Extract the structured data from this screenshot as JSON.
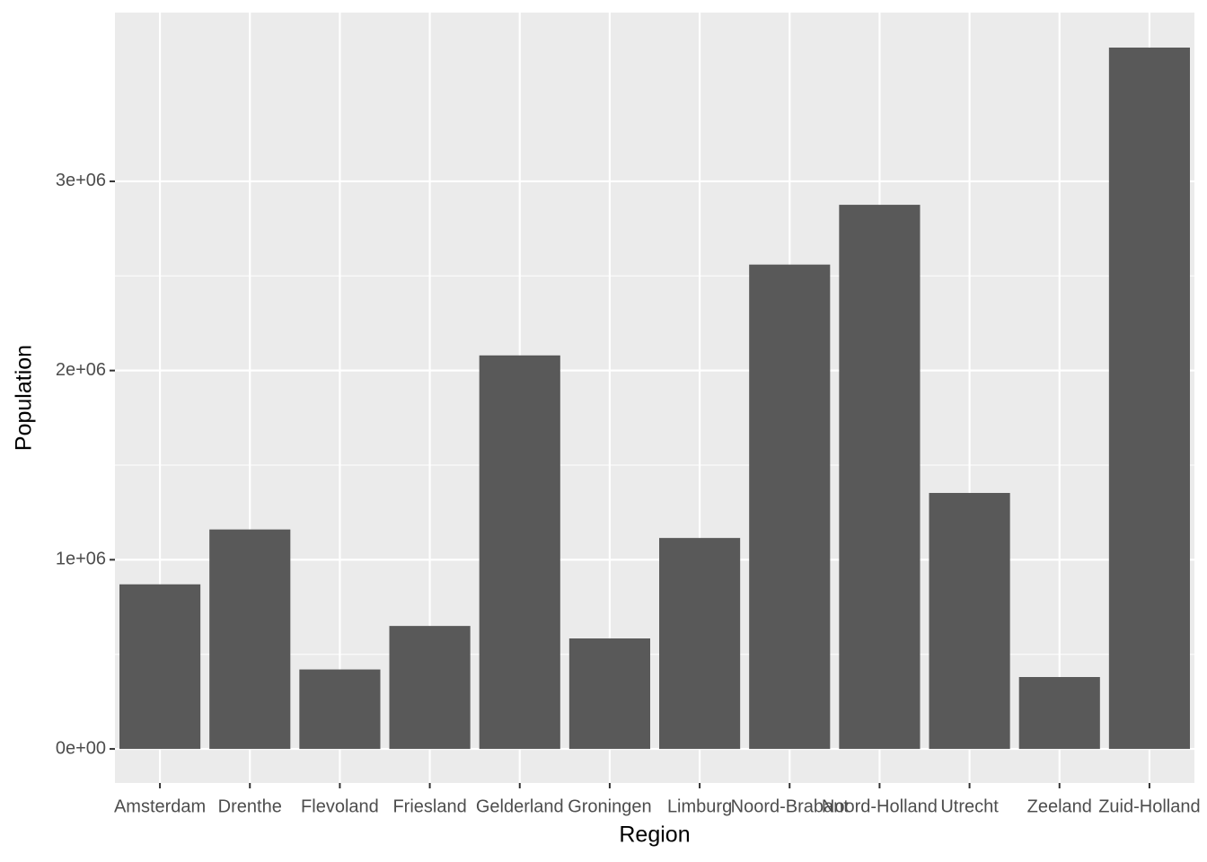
{
  "chart_data": {
    "type": "bar",
    "x_label": "Region",
    "y_label": "Population",
    "categories": [
      "Amsterdam",
      "Drenthe",
      "Flevoland",
      "Friesland",
      "Gelderland",
      "Groningen",
      "Limburg",
      "Noord-Brabant",
      "Noord-Holland",
      "Utrecht",
      "Zeeland",
      "Zuid-Holland"
    ],
    "values": [
      870000,
      1160000,
      420000,
      650000,
      2080000,
      584000,
      1115000,
      2560000,
      2876000,
      1353000,
      380000,
      3707000
    ],
    "color": "#595959",
    "ylim": [
      -180000,
      3892000
    ],
    "yticks": [
      {
        "value": 0,
        "label": "0e+00"
      },
      {
        "value": 1000000,
        "label": "1e+06"
      },
      {
        "value": 2000000,
        "label": "2e+06"
      },
      {
        "value": 3000000,
        "label": "3e+06"
      }
    ],
    "grid": true
  }
}
